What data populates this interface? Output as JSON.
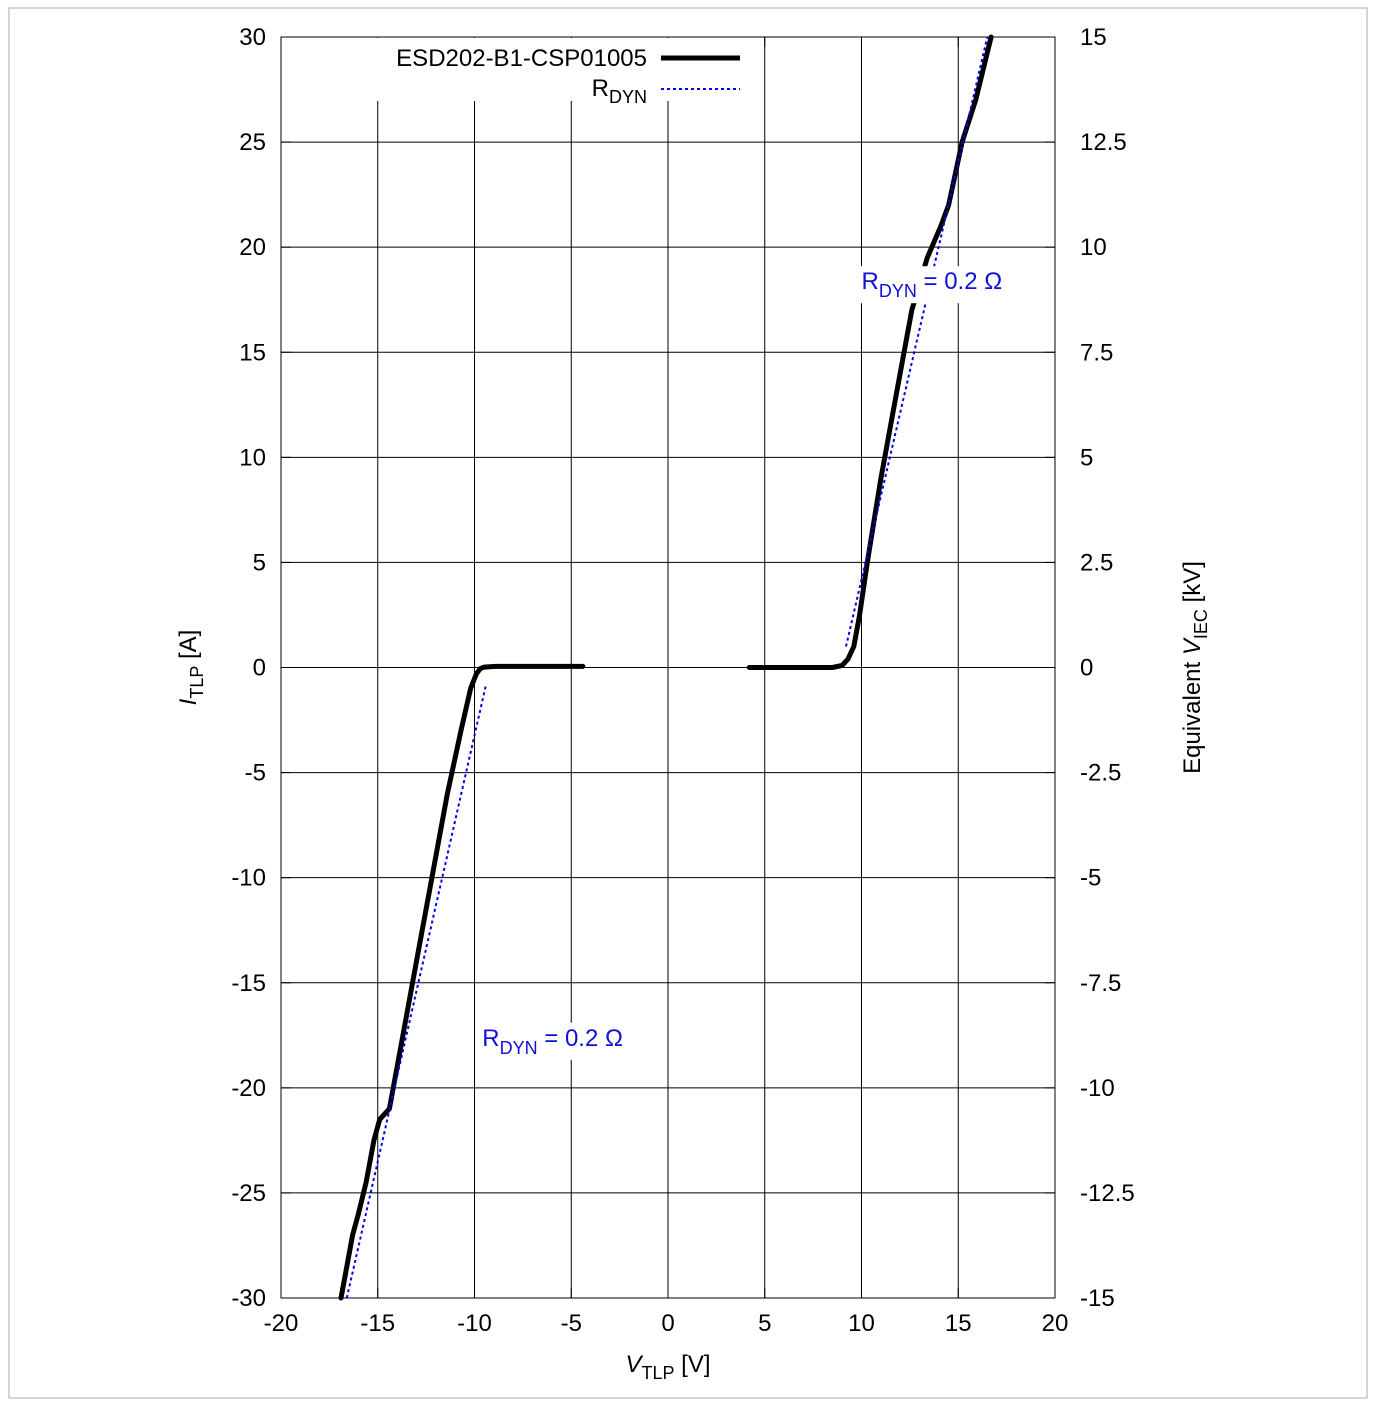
{
  "chart_data": {
    "type": "line",
    "title": "",
    "xlabel": {
      "main": "V",
      "sub": "TLP",
      "unit": " [V]"
    },
    "ylabel": {
      "main": "I",
      "sub": "TLP",
      "unit": " [A]"
    },
    "y2label": {
      "prefix": "Equivalent ",
      "main": "V",
      "sub": "IEC",
      "unit": "  [kV]"
    },
    "xlim": [
      -20,
      20
    ],
    "ylim": [
      -30,
      30
    ],
    "y2lim": [
      -15,
      15
    ],
    "xticks": [
      -20,
      -15,
      -10,
      -5,
      0,
      5,
      10,
      15,
      20
    ],
    "yticks": [
      -30,
      -25,
      -20,
      -15,
      -10,
      -5,
      0,
      5,
      10,
      15,
      20,
      25,
      30
    ],
    "y2ticks": [
      "-15",
      "-12.5",
      "-10",
      "-7.5",
      "-5",
      "-2.5",
      "0",
      "2.5",
      "5",
      "7.5",
      "10",
      "12.5",
      "15"
    ],
    "grid": true,
    "legend_position": "top-left",
    "colors": {
      "device": "#000000",
      "rdyn": "#0000ee",
      "annotation": "#1010dd"
    },
    "series": [
      {
        "name": "ESD202-B1-CSP01005",
        "style": "solid",
        "segments": [
          {
            "x": [
              -16.9,
              -16.7,
              -16.3,
              -16.0,
              -15.6,
              -15.2,
              -14.9,
              -14.4,
              -13.8,
              -13.0,
              -12.2,
              -11.4,
              -10.7,
              -10.2,
              -9.9,
              -9.7,
              -9.5,
              -9.2,
              -8.9,
              -8.5,
              -7.0,
              -5.5,
              -4.4
            ],
            "y": [
              -30,
              -29,
              -27,
              -26,
              -24.5,
              -22.5,
              -21.5,
              -21,
              -18,
              -14,
              -10,
              -6,
              -3,
              -1,
              -0.3,
              -0.05,
              0.02,
              0.04,
              0.05,
              0.05,
              0.05,
              0.05,
              0.05
            ]
          },
          {
            "x": [
              4.2,
              6.0,
              7.5,
              8.5,
              9.0,
              9.3,
              9.6,
              9.9,
              10.3,
              11.0,
              11.8,
              12.6,
              13.4,
              14.1,
              14.5,
              15.2,
              15.9,
              16.3,
              16.7
            ],
            "y": [
              0,
              0,
              0,
              0,
              0.1,
              0.4,
              1,
              2.5,
              5,
              9,
              13,
              17,
              19.5,
              21,
              22,
              25,
              27,
              28.5,
              30
            ]
          }
        ]
      },
      {
        "name": "RDYN",
        "name_main": "R",
        "name_sub": "DYN",
        "style": "dotted",
        "segments": [
          {
            "x": [
              -16.6,
              -9.4
            ],
            "y": [
              -30,
              -0.8
            ]
          },
          {
            "x": [
              9.2,
              16.5
            ],
            "y": [
              1,
              30
            ]
          }
        ]
      }
    ],
    "annotations": [
      {
        "main": "R",
        "sub": "DYN",
        "rest": " = 0.2 Ω",
        "x": 10.0,
        "y": 18
      },
      {
        "main": "R",
        "sub": "DYN",
        "rest": " = 0.2 Ω",
        "x": -9.6,
        "y": -18
      }
    ]
  }
}
